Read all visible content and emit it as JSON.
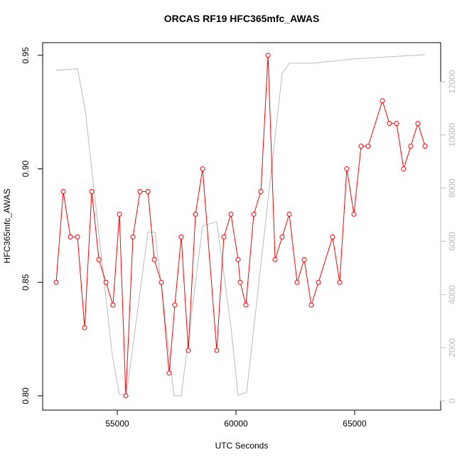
{
  "chart_data": {
    "type": "line",
    "title": "ORCAS RF19 HFC365mfc_AWAS",
    "x_label": "UTC Seconds",
    "y_label": "HFC365mfc_AWAS",
    "xlim": [
      51856,
      68624
    ],
    "ylim": [
      0.7937,
      0.9556
    ],
    "y2lim": [
      -348,
      13471
    ],
    "xticks": [
      55000,
      60000,
      65000
    ],
    "yticks": [
      {
        "value": 0.8,
        "label": "0.80"
      },
      {
        "value": 0.85,
        "label": "0.85"
      },
      {
        "value": 0.9,
        "label": "0.90"
      },
      {
        "value": 0.95,
        "label": "0.95"
      }
    ],
    "y2ticks": [
      0,
      2000,
      4000,
      6000,
      8000,
      10000,
      12000
    ],
    "series": [
      {
        "color": "#ff0000",
        "markers": true,
        "x": [
          52425,
          52725,
          53025,
          53325,
          53625,
          53925,
          54225,
          54525,
          54820,
          55090,
          55360,
          55660,
          55960,
          56290,
          56560,
          56855,
          57185,
          57425,
          57695,
          57995,
          58295,
          58595,
          59190,
          59490,
          59790,
          60090,
          60180,
          60420,
          60750,
          61050,
          61350,
          61650,
          61945,
          62245,
          62575,
          62875,
          63175,
          63475,
          64070,
          64370,
          64670,
          64970,
          65270,
          65570,
          66170,
          66465,
          66765,
          67065,
          67365,
          67665,
          67965
        ],
        "values": [
          0.85,
          0.89,
          0.87,
          0.87,
          0.83,
          0.89,
          0.86,
          0.85,
          0.84,
          0.88,
          0.8,
          0.87,
          0.89,
          0.89,
          0.86,
          0.85,
          0.81,
          0.84,
          0.87,
          0.82,
          0.88,
          0.9,
          0.82,
          0.87,
          0.88,
          0.86,
          0.85,
          0.84,
          0.88,
          0.89,
          0.95,
          0.86,
          0.87,
          0.88,
          0.85,
          0.86,
          0.84,
          0.85,
          0.87,
          0.85,
          0.9,
          0.88,
          0.91,
          0.91,
          0.93,
          0.92,
          0.92,
          0.9,
          0.91,
          0.92,
          0.91
        ]
      },
      {
        "color": "#bbbbbb",
        "axis": "y2",
        "markers": false,
        "x": [
          52425,
          53325,
          53650,
          54790,
          55090,
          55390,
          56290,
          56590,
          57395,
          57695,
          58595,
          59190,
          59790,
          60090,
          60450,
          61945,
          62245,
          63235,
          64970,
          67965
        ],
        "values": [
          12430,
          12490,
          10940,
          1710,
          240,
          240,
          6340,
          6340,
          190,
          190,
          6580,
          6740,
          2780,
          210,
          320,
          12300,
          12700,
          12700,
          12860,
          13020
        ]
      }
    ]
  }
}
